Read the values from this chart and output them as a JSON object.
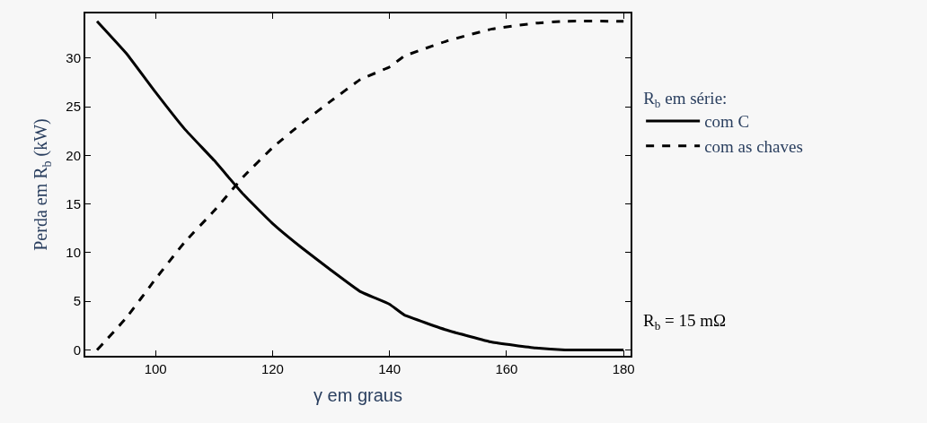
{
  "chart_data": {
    "type": "line",
    "xlabel": "γ em graus",
    "ylabel": "Perda em R$_{b}$ (kW)",
    "legend_title": "R$_{b}$ em série:",
    "x": [
      90,
      95,
      100,
      105,
      110,
      115,
      120,
      125,
      130,
      135,
      140,
      142.5,
      150,
      157.5,
      165,
      170,
      180
    ],
    "series": [
      {
        "name": "com C",
        "color": "#000000",
        "line_style": "solid",
        "values": [
          33.8,
          30.5,
          26.5,
          22.7,
          19.5,
          16,
          13,
          10.5,
          8.2,
          6.0,
          4.7,
          3.6,
          2,
          0.8,
          0.2,
          0,
          0
        ]
      },
      {
        "name": "com as chaves",
        "color": "#000000",
        "line_style": "dashed",
        "values": [
          0,
          3.3,
          7.3,
          11.1,
          14.3,
          17.8,
          20.8,
          23.3,
          25.6,
          27.8,
          29.1,
          30.2,
          31.8,
          33.0,
          33.6,
          33.8,
          33.8
        ]
      }
    ],
    "xlim": [
      88,
      181.2
    ],
    "xticks": [
      100,
      120,
      140,
      160,
      180
    ],
    "ylim": [
      -0.6,
      34.6
    ],
    "yticks": [
      0,
      5,
      10,
      15,
      20,
      25,
      30
    ],
    "annotations": [
      "R$_{b}$ = 15 mΩ"
    ],
    "legend": "right",
    "grid": false,
    "marker": "none"
  }
}
